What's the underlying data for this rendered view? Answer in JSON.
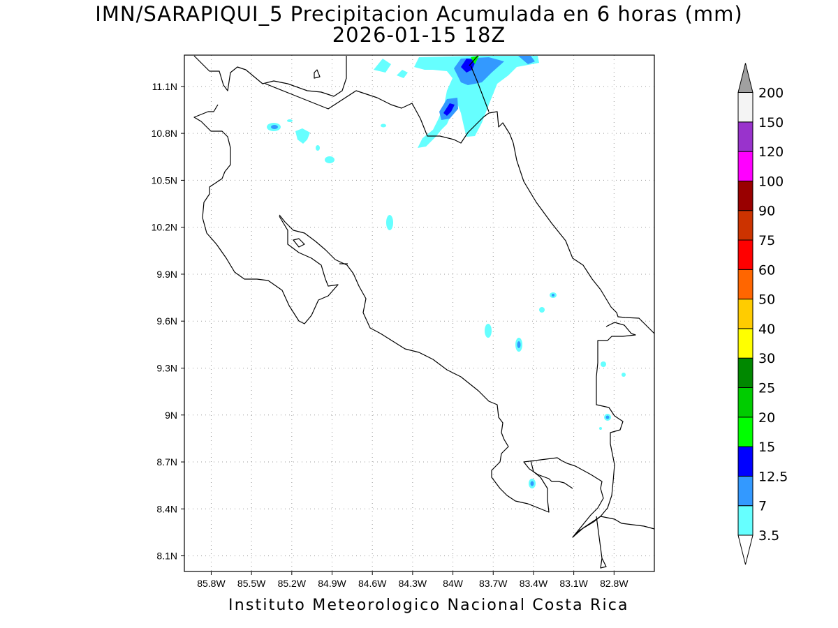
{
  "title": {
    "line1": "IMN/SARAPIQUI_5 Precipitacion Acumulada en 6 horas (mm)",
    "line2": "2026-01-15 18Z"
  },
  "footer": "Instituto Meteorologico Nacional Costa Rica",
  "map": {
    "lon_range": [
      -86.0,
      -82.5
    ],
    "lat_range": [
      8.0,
      11.3
    ],
    "x_ticks": [
      {
        "value": -85.8,
        "label": "85.8W"
      },
      {
        "value": -85.5,
        "label": "85.5W"
      },
      {
        "value": -85.2,
        "label": "85.2W"
      },
      {
        "value": -84.9,
        "label": "84.9W"
      },
      {
        "value": -84.6,
        "label": "84.6W"
      },
      {
        "value": -84.3,
        "label": "84.3W"
      },
      {
        "value": -84.0,
        "label": "84W"
      },
      {
        "value": -83.7,
        "label": "83.7W"
      },
      {
        "value": -83.4,
        "label": "83.4W"
      },
      {
        "value": -83.1,
        "label": "83.1W"
      },
      {
        "value": -82.8,
        "label": "82.8W"
      }
    ],
    "y_ticks": [
      {
        "value": 11.1,
        "label": "11.1N"
      },
      {
        "value": 10.8,
        "label": "10.8N"
      },
      {
        "value": 10.5,
        "label": "10.5N"
      },
      {
        "value": 10.2,
        "label": "10.2N"
      },
      {
        "value": 9.9,
        "label": "9.9N"
      },
      {
        "value": 9.6,
        "label": "9.6N"
      },
      {
        "value": 9.3,
        "label": "9.3N"
      },
      {
        "value": 9.0,
        "label": "9N"
      },
      {
        "value": 8.7,
        "label": "8.7N"
      },
      {
        "value": 8.4,
        "label": "8.4N"
      },
      {
        "value": 8.1,
        "label": "8.1N"
      }
    ],
    "gridlines": true,
    "precipitation_cells": [
      {
        "lon": -85.26,
        "lat": 10.84,
        "level": "7"
      },
      {
        "lon": -85.05,
        "lat": 10.81,
        "level": "3.5"
      },
      {
        "lon": -84.87,
        "lat": 10.64,
        "level": "3.5"
      },
      {
        "lon": -84.45,
        "lat": 10.24,
        "level": "3.5"
      },
      {
        "lon": -84.04,
        "lat": 10.96,
        "level": "12.5"
      },
      {
        "lon": -83.86,
        "lat": 11.25,
        "level": "12.5"
      },
      {
        "lon": -83.58,
        "lat": 9.44,
        "level": "7"
      },
      {
        "lon": -83.4,
        "lat": 8.56,
        "level": "7"
      },
      {
        "lon": -83.28,
        "lat": 9.76,
        "level": "7"
      },
      {
        "lon": -82.86,
        "lat": 8.98,
        "level": "7"
      },
      {
        "lon": -83.33,
        "lat": 9.67,
        "level": "3.5"
      },
      {
        "lon": -83.72,
        "lat": 9.53,
        "level": "3.5"
      },
      {
        "lon": -82.89,
        "lat": 9.32,
        "level": "3.5"
      }
    ]
  },
  "colorbar": {
    "levels": [
      {
        "label": "3.5",
        "color": "#66ffff"
      },
      {
        "label": "7",
        "color": "#3399ff"
      },
      {
        "label": "12.5",
        "color": "#0000ff"
      },
      {
        "label": "15",
        "color": "#00ff00"
      },
      {
        "label": "20",
        "color": "#00cc00"
      },
      {
        "label": "25",
        "color": "#008800"
      },
      {
        "label": "30",
        "color": "#ffff00"
      },
      {
        "label": "40",
        "color": "#ffcc00"
      },
      {
        "label": "50",
        "color": "#ff6600"
      },
      {
        "label": "60",
        "color": "#ff0000"
      },
      {
        "label": "75",
        "color": "#cc3300"
      },
      {
        "label": "90",
        "color": "#990000"
      },
      {
        "label": "100",
        "color": "#ff00ff"
      },
      {
        "label": "120",
        "color": "#9933cc"
      },
      {
        "label": "150",
        "color": "#f4f4f4"
      },
      {
        "label": "200",
        "color": "#a0a0a0"
      }
    ],
    "below_color": "#ffffff"
  }
}
